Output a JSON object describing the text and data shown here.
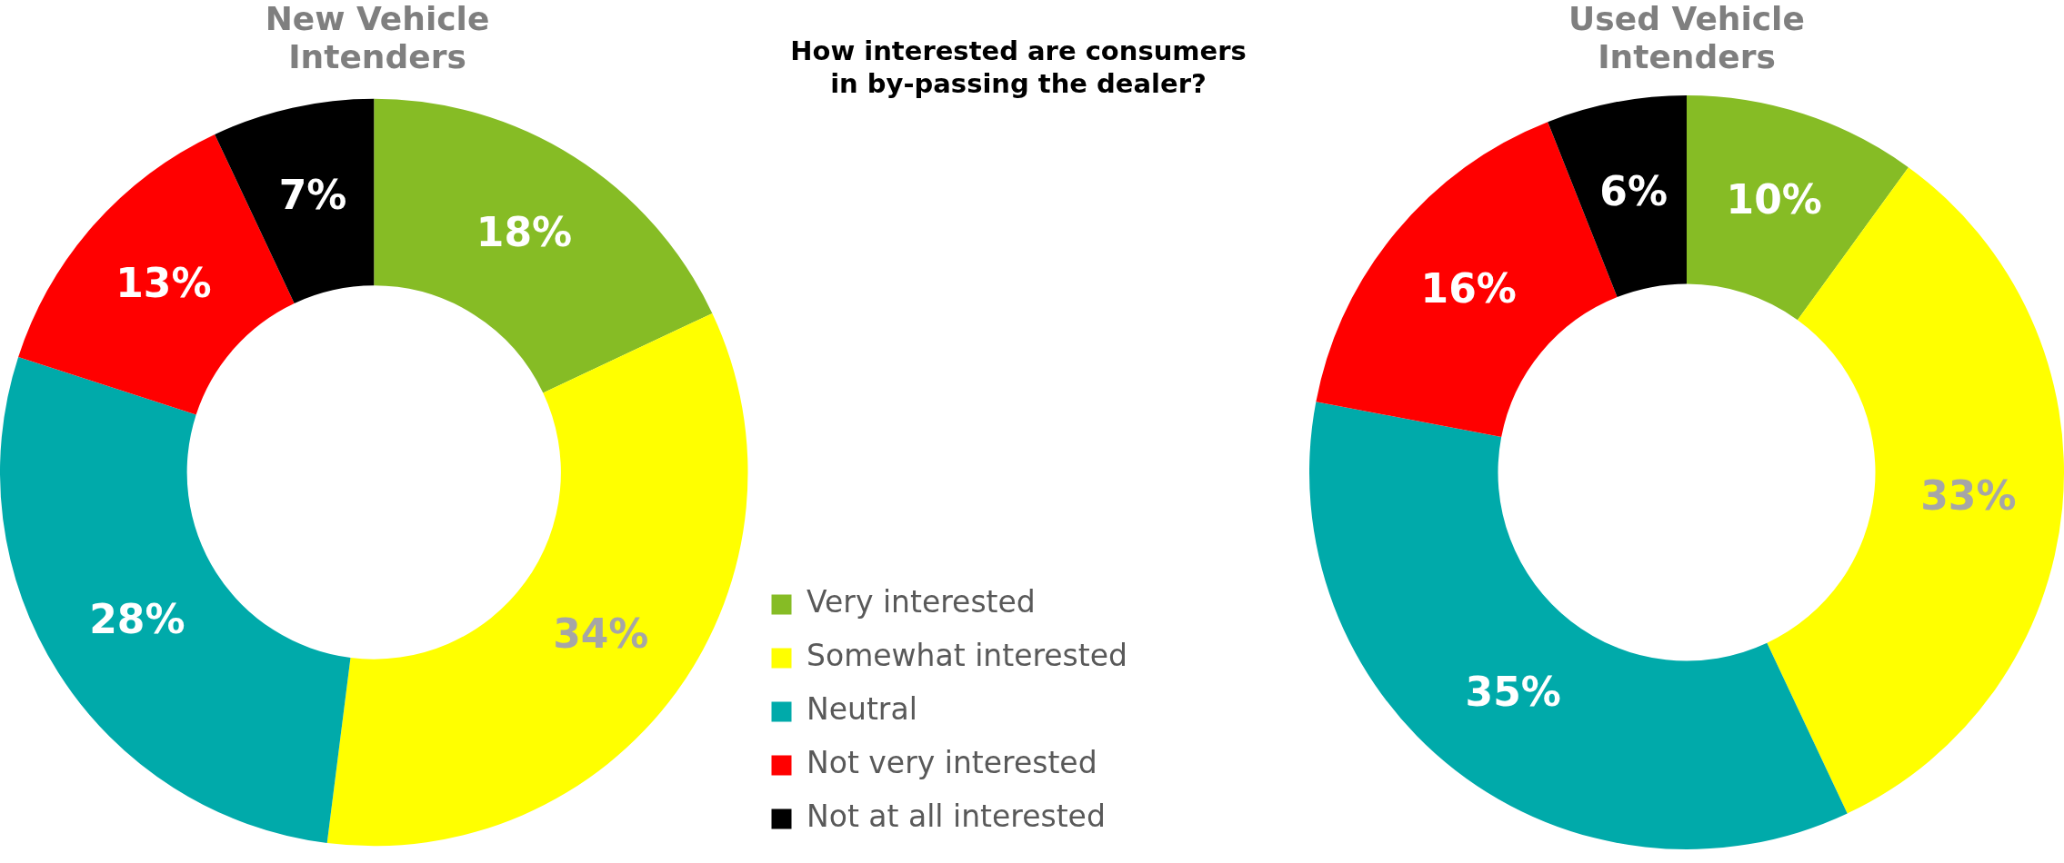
{
  "chart_data": [
    {
      "type": "donut",
      "title": "New Vehicle Intenders",
      "categories": [
        "Very interested",
        "Somewhat interested",
        "Neutral",
        "Not very interested",
        "Not at all interested"
      ],
      "values": [
        18,
        34,
        28,
        13,
        7
      ],
      "value_labels": [
        "18%",
        "34%",
        "28%",
        "13%",
        "7%"
      ],
      "colors": [
        "#86bc25",
        "#ffff00",
        "#00aaaa",
        "#ff0000",
        "#000000"
      ],
      "legend": "right"
    },
    {
      "type": "other",
      "title": "How interested are consumers in by-passing the dealer?"
    },
    {
      "type": "donut",
      "title": "Used Vehicle Intenders",
      "categories": [
        null,
        null,
        null,
        null,
        null
      ],
      "values": [
        10,
        33,
        35,
        16,
        6
      ],
      "value_labels": [
        "10%",
        "33%",
        "35%",
        "16%",
        "6%"
      ],
      "colors": [
        "#86bc25",
        "#ffff00",
        "#00aaaa",
        "#ff0000",
        "#000000"
      ]
    }
  ]
}
